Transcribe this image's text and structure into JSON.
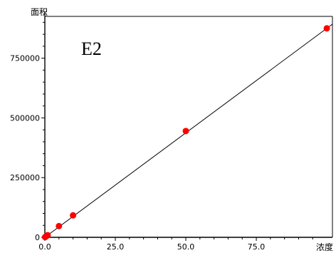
{
  "chart_data": {
    "type": "scatter",
    "title": "",
    "annotation": "E2",
    "xlabel": "浓度",
    "ylabel": "面积",
    "xlim": [
      0,
      102
    ],
    "ylim": [
      0,
      925000
    ],
    "x_ticks": [
      0.0,
      25.0,
      50.0,
      75.0
    ],
    "x_tick_labels": [
      "0.0",
      "25.0",
      "50.0",
      "75.0"
    ],
    "y_ticks": [
      0,
      250000,
      500000,
      750000
    ],
    "y_tick_labels": [
      "0",
      "250000",
      "500000",
      "750000"
    ],
    "grid": false,
    "series": [
      {
        "kind": "points",
        "color": "#ff0000",
        "x": [
          0.1,
          0.5,
          1,
          5,
          10,
          50,
          100
        ],
        "y": [
          1000,
          4500,
          9000,
          47000,
          92000,
          445000,
          875000
        ]
      },
      {
        "kind": "fit-line",
        "color": "#000000",
        "x": [
          0,
          102
        ],
        "y": [
          0,
          892500
        ]
      }
    ]
  }
}
